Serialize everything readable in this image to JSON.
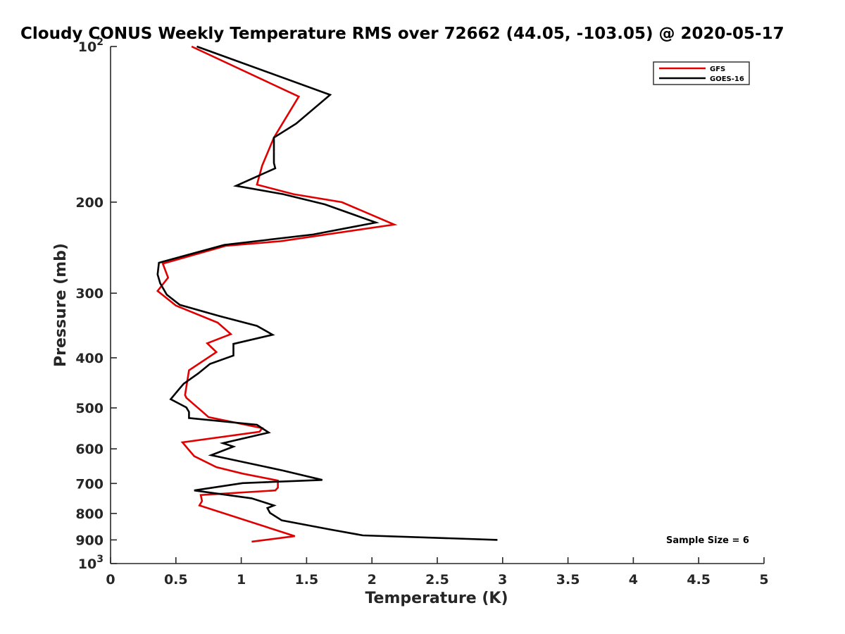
{
  "chart_data": {
    "type": "line",
    "title": "Cloudy CONUS Weekly Temperature RMS over 72662 (44.05, -103.05) @ 2020-05-17",
    "xlabel": "Temperature (K)",
    "ylabel": "Pressure (mb)",
    "xlim": [
      0,
      5
    ],
    "ylim": [
      100,
      1000
    ],
    "y_scale": "log",
    "y_reversed": true,
    "xticks": [
      0,
      0.5,
      1,
      1.5,
      2,
      2.5,
      3,
      3.5,
      4,
      4.5,
      5
    ],
    "xtick_labels": [
      "0",
      "0.5",
      "1",
      "1.5",
      "2",
      "2.5",
      "3",
      "3.5",
      "4",
      "4.5",
      "5"
    ],
    "yticks": [
      100,
      200,
      300,
      400,
      500,
      600,
      700,
      800,
      900,
      1000
    ],
    "ytick_labels": [
      "10^2",
      "200",
      "300",
      "400",
      "500",
      "600",
      "700",
      "800",
      "900",
      "10^3"
    ],
    "grid": false,
    "legend_position": "top-right",
    "annotation": "Sample Size = 6",
    "series": [
      {
        "name": "GFS",
        "color": "#e00000",
        "points": [
          [
            0.62,
            100
          ],
          [
            1.44,
            125
          ],
          [
            1.25,
            150
          ],
          [
            1.16,
            170
          ],
          [
            1.12,
            185
          ],
          [
            1.4,
            193
          ],
          [
            1.77,
            200
          ],
          [
            2.17,
            221
          ],
          [
            1.3,
            238
          ],
          [
            0.88,
            243
          ],
          [
            0.4,
            263
          ],
          [
            0.44,
            280
          ],
          [
            0.36,
            297
          ],
          [
            0.5,
            317
          ],
          [
            0.82,
            342
          ],
          [
            0.92,
            360
          ],
          [
            0.74,
            375
          ],
          [
            0.81,
            390
          ],
          [
            0.6,
            423
          ],
          [
            0.57,
            472
          ],
          [
            0.58,
            478
          ],
          [
            0.72,
            513
          ],
          [
            0.75,
            521
          ],
          [
            1.16,
            547
          ],
          [
            1.14,
            556
          ],
          [
            0.55,
            583
          ],
          [
            0.64,
            620
          ],
          [
            0.81,
            651
          ],
          [
            1.01,
            670
          ],
          [
            1.28,
            691
          ],
          [
            1.28,
            713
          ],
          [
            1.26,
            722
          ],
          [
            0.69,
            737
          ],
          [
            0.7,
            757
          ],
          [
            0.68,
            772
          ],
          [
            1.41,
            885
          ],
          [
            1.08,
            907
          ]
        ]
      },
      {
        "name": "GOES-16",
        "color": "#000000",
        "points": [
          [
            0.66,
            100
          ],
          [
            1.68,
            124
          ],
          [
            1.42,
            141
          ],
          [
            1.25,
            150
          ],
          [
            1.25,
            168
          ],
          [
            1.26,
            172
          ],
          [
            0.96,
            186
          ],
          [
            1.32,
            193
          ],
          [
            1.64,
            202
          ],
          [
            2.03,
            219
          ],
          [
            1.55,
            231
          ],
          [
            0.87,
            242
          ],
          [
            0.37,
            262
          ],
          [
            0.36,
            276
          ],
          [
            0.38,
            287
          ],
          [
            0.43,
            302
          ],
          [
            0.53,
            316
          ],
          [
            0.83,
            332
          ],
          [
            1.12,
            347
          ],
          [
            1.24,
            361
          ],
          [
            0.94,
            376
          ],
          [
            0.94,
            396
          ],
          [
            0.76,
            411
          ],
          [
            0.67,
            429
          ],
          [
            0.56,
            449
          ],
          [
            0.53,
            458
          ],
          [
            0.46,
            481
          ],
          [
            0.58,
            499
          ],
          [
            0.6,
            509
          ],
          [
            0.6,
            523
          ],
          [
            1.12,
            539
          ],
          [
            1.21,
            558
          ],
          [
            0.86,
            585
          ],
          [
            0.94,
            594
          ],
          [
            0.77,
            617
          ],
          [
            1.32,
            661
          ],
          [
            1.62,
            689
          ],
          [
            1.01,
            699
          ],
          [
            0.64,
            722
          ],
          [
            1.08,
            748
          ],
          [
            1.25,
            772
          ],
          [
            1.2,
            781
          ],
          [
            1.22,
            798
          ],
          [
            1.31,
            825
          ],
          [
            1.68,
            859
          ],
          [
            1.93,
            882
          ],
          [
            2.96,
            900
          ]
        ]
      }
    ]
  }
}
